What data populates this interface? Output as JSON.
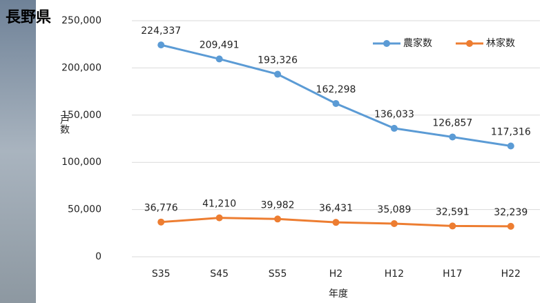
{
  "chart_data": {
    "type": "line",
    "title": "長野県",
    "categories": [
      "S35",
      "S45",
      "S55",
      "H2",
      "H12",
      "H17",
      "H22"
    ],
    "series": [
      {
        "name": "農家数",
        "color": "#5b9bd5",
        "values": [
          224337,
          209491,
          193326,
          162298,
          136033,
          126857,
          117316
        ],
        "value_labels": [
          "224,337",
          "209,491",
          "193,326",
          "162,298",
          "136,033",
          "126,857",
          "117,316"
        ]
      },
      {
        "name": "林家数",
        "color": "#ed7d31",
        "values": [
          36776,
          41210,
          39982,
          36431,
          35089,
          32591,
          32239
        ],
        "value_labels": [
          "36,776",
          "41,210",
          "39,982",
          "36,431",
          "35,089",
          "32,591",
          "32,239"
        ]
      }
    ],
    "ylim": [
      0,
      250000
    ],
    "yticks": [
      0,
      {
        "value": 50000,
        "label": "50,000"
      },
      {
        "value": 100000,
        "label": "100,000"
      },
      {
        "value": 150000,
        "label": "150,000"
      },
      {
        "value": 200000,
        "label": "200,000"
      },
      {
        "value": 250000,
        "label": "250,000"
      }
    ],
    "ylabel": "戸数",
    "xlabel": "年度",
    "grid": true,
    "legend": "top-right"
  }
}
